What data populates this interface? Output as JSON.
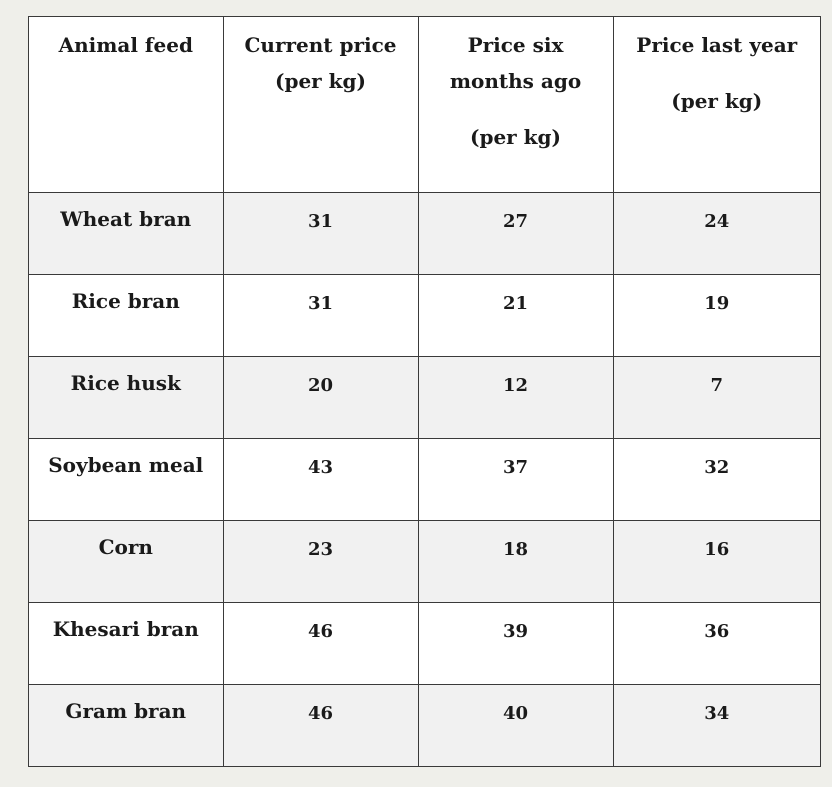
{
  "table": {
    "headers": [
      {
        "lines": [
          "Animal feed"
        ]
      },
      {
        "lines": [
          "Current price",
          "(per kg)"
        ]
      },
      {
        "lines": [
          "Price six",
          "months ago",
          "",
          "(per kg)"
        ]
      },
      {
        "lines": [
          "Price last year",
          "",
          "(per kg)"
        ]
      }
    ],
    "rows": [
      {
        "feed": "Wheat bran",
        "current": "31",
        "six_months_ago": "27",
        "last_year": "24"
      },
      {
        "feed": "Rice bran",
        "current": "31",
        "six_months_ago": "21",
        "last_year": "19"
      },
      {
        "feed": "Rice husk",
        "current": "20",
        "six_months_ago": "12",
        "last_year": "7"
      },
      {
        "feed": "Soybean meal",
        "current": "43",
        "six_months_ago": "37",
        "last_year": "32"
      },
      {
        "feed": "Corn",
        "current": "23",
        "six_months_ago": "18",
        "last_year": "16"
      },
      {
        "feed": "Khesari bran",
        "current": "46",
        "six_months_ago": "39",
        "last_year": "36"
      },
      {
        "feed": "Gram bran",
        "current": "46",
        "six_months_ago": "40",
        "last_year": "34"
      }
    ]
  }
}
